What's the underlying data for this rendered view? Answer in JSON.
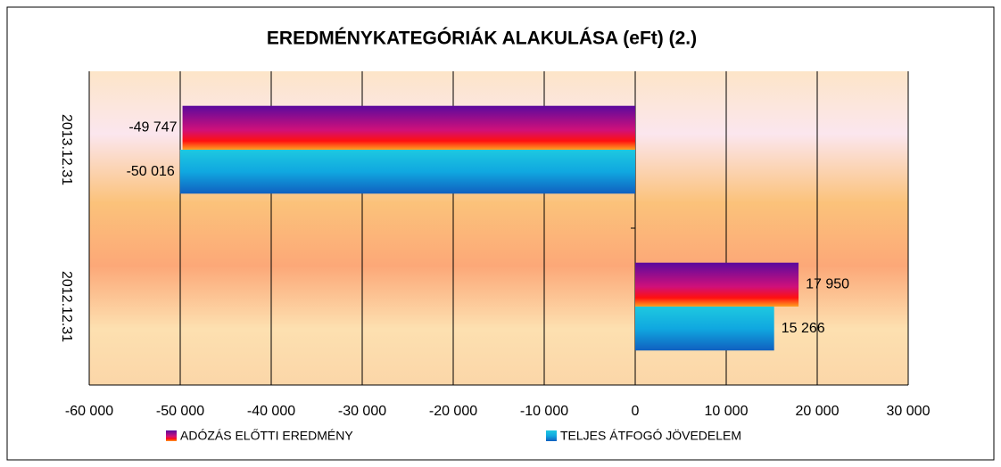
{
  "chart_data": {
    "type": "bar",
    "orientation": "horizontal",
    "title": "EREDMÉNYKATEGÓRIÁK ALAKULÁSA (eFt) (2.)",
    "categories": [
      "2013.12.31",
      "2012.12.31"
    ],
    "series": [
      {
        "name": "ADÓZÁS ELŐTTI EREDMÉNY",
        "color": "#5a0a9e",
        "values": [
          -49747,
          17950
        ],
        "value_labels": [
          "-49 747",
          "17 950"
        ]
      },
      {
        "name": "TELJES ÁTFOGÓ JÖVEDELEM",
        "color": "#1ec8e0",
        "values": [
          -50016,
          15266
        ],
        "value_labels": [
          "-50 016",
          "15 266"
        ]
      }
    ],
    "xlim": [
      -60000,
      30000
    ],
    "xticks": [
      {
        "value": -60000,
        "label": "-60 000"
      },
      {
        "value": -50000,
        "label": "-50 000"
      },
      {
        "value": -40000,
        "label": "-40 000"
      },
      {
        "value": -30000,
        "label": "-30 000"
      },
      {
        "value": -20000,
        "label": "-20 000"
      },
      {
        "value": -10000,
        "label": "-10 000"
      },
      0,
      {
        "value": 10000,
        "label": "10 000"
      },
      {
        "value": 20000,
        "label": "20 000"
      },
      {
        "value": 30000,
        "label": "30 000"
      }
    ],
    "grid": true,
    "legend": "bottom"
  }
}
